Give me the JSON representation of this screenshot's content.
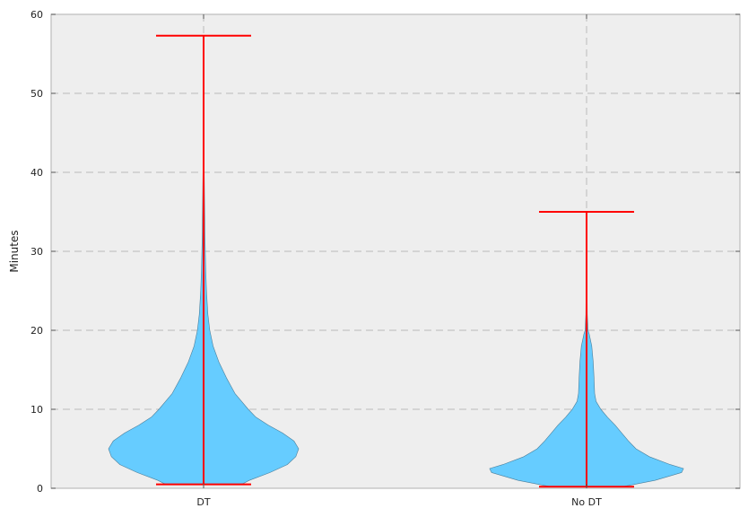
{
  "chart_data": {
    "type": "violin",
    "categories": [
      "DT",
      "No DT"
    ],
    "ylabel": "Minutes",
    "ylim": [
      0,
      60
    ],
    "yticks": [
      0,
      10,
      20,
      30,
      40,
      50,
      60
    ],
    "grid": true,
    "colors": {
      "body": "#66ccff",
      "extrema": "#ff0000",
      "grid": "#bbbbbb",
      "background": "#eeeeee",
      "frame": "#bcbcbc"
    },
    "series": [
      {
        "category": "DT",
        "min": 0.5,
        "max": 57.3,
        "density": [
          [
            0.5,
            0.4
          ],
          [
            1,
            0.48
          ],
          [
            2,
            0.7
          ],
          [
            3,
            0.88
          ],
          [
            4,
            0.97
          ],
          [
            5,
            1.0
          ],
          [
            6,
            0.95
          ],
          [
            7,
            0.83
          ],
          [
            8,
            0.68
          ],
          [
            9,
            0.55
          ],
          [
            10,
            0.47
          ],
          [
            11,
            0.4
          ],
          [
            12,
            0.33
          ],
          [
            14,
            0.24
          ],
          [
            16,
            0.16
          ],
          [
            18,
            0.1
          ],
          [
            20,
            0.065
          ],
          [
            22,
            0.045
          ],
          [
            25,
            0.03
          ],
          [
            28,
            0.022
          ],
          [
            32,
            0.014
          ],
          [
            36,
            0.01
          ],
          [
            40,
            0.007
          ],
          [
            45,
            0.005
          ],
          [
            50,
            0.004
          ],
          [
            57.3,
            0.003
          ]
        ]
      },
      {
        "category": "No DT",
        "min": 0.2,
        "max": 35.0,
        "density": [
          [
            0.2,
            0.38
          ],
          [
            1,
            0.72
          ],
          [
            2,
            1.0
          ],
          [
            2.5,
            1.02
          ],
          [
            3,
            0.88
          ],
          [
            4,
            0.66
          ],
          [
            5,
            0.52
          ],
          [
            6,
            0.44
          ],
          [
            7,
            0.37
          ],
          [
            8,
            0.3
          ],
          [
            9,
            0.22
          ],
          [
            10,
            0.15
          ],
          [
            11,
            0.1
          ],
          [
            12,
            0.085
          ],
          [
            14,
            0.078
          ],
          [
            16,
            0.07
          ],
          [
            18,
            0.055
          ],
          [
            19.5,
            0.028
          ],
          [
            20,
            0.015
          ],
          [
            22,
            0.008
          ],
          [
            25,
            0.006
          ],
          [
            30,
            0.005
          ],
          [
            35,
            0.004
          ]
        ]
      }
    ]
  }
}
